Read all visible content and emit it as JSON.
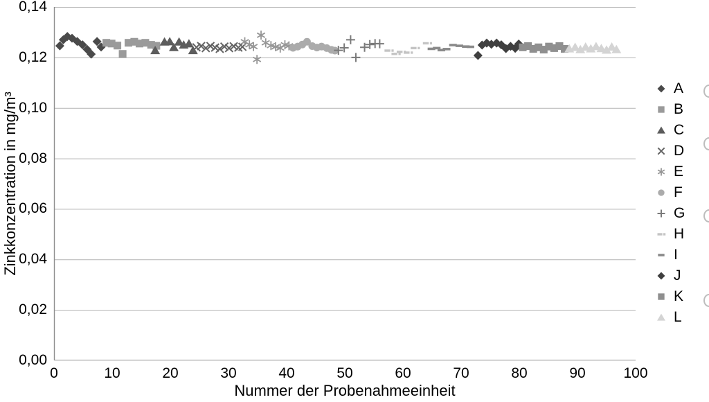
{
  "chart_data": {
    "type": "scatter",
    "title": "",
    "xlabel": "Nummer der Probenahmeeinheit",
    "ylabel": "Zinkkonzentration in mg/m³",
    "xlim": [
      0,
      100
    ],
    "ylim": [
      0,
      0.14
    ],
    "grid": "horizontal",
    "grid_color": "#b3b3b3",
    "axis_color": "#8c8c8c",
    "legend_position": "right",
    "x_ticks": [
      {
        "value": 0,
        "label": "0"
      },
      {
        "value": 10,
        "label": "10"
      },
      {
        "value": 20,
        "label": "20"
      },
      {
        "value": 30,
        "label": "30"
      },
      {
        "value": 40,
        "label": "40"
      },
      {
        "value": 50,
        "label": "50"
      },
      {
        "value": 60,
        "label": "60"
      },
      {
        "value": 70,
        "label": "70"
      },
      {
        "value": 80,
        "label": "80"
      },
      {
        "value": 90,
        "label": "90"
      },
      {
        "value": 100,
        "label": "100"
      }
    ],
    "y_ticks": [
      {
        "value": 0.0,
        "label": "0,00"
      },
      {
        "value": 0.02,
        "label": "0,02"
      },
      {
        "value": 0.04,
        "label": "0,04"
      },
      {
        "value": 0.06,
        "label": "0,06"
      },
      {
        "value": 0.08,
        "label": "0,08"
      },
      {
        "value": 0.1,
        "label": "0,10"
      },
      {
        "value": 0.12,
        "label": "0,12"
      },
      {
        "value": 0.14,
        "label": "0,14"
      }
    ],
    "series": [
      {
        "name": "A",
        "marker": "diamond",
        "color": "#4a4a4a",
        "points": [
          [
            1,
            0.1246
          ],
          [
            1.6,
            0.127
          ],
          [
            2.3,
            0.1283
          ],
          [
            3.1,
            0.1276
          ],
          [
            4.0,
            0.1263
          ],
          [
            4.9,
            0.125
          ],
          [
            5.7,
            0.1232
          ],
          [
            6.4,
            0.1213
          ],
          [
            7.4,
            0.1263
          ],
          [
            8.1,
            0.1241
          ]
        ]
      },
      {
        "name": "B",
        "marker": "square",
        "color": "#9a9a9a",
        "points": [
          [
            9,
            0.1258
          ],
          [
            9.9,
            0.1255
          ],
          [
            10.9,
            0.1247
          ],
          [
            11.8,
            0.1214
          ],
          [
            12.8,
            0.1258
          ],
          [
            13.8,
            0.1262
          ],
          [
            14.7,
            0.1255
          ],
          [
            15.7,
            0.1258
          ],
          [
            16.7,
            0.125
          ],
          [
            17.6,
            0.1246
          ]
        ]
      },
      {
        "name": "C",
        "marker": "triangle",
        "color": "#5c5c5c",
        "points": [
          [
            17.4,
            0.1228
          ],
          [
            19.0,
            0.1262
          ],
          [
            19.9,
            0.1263
          ],
          [
            20.6,
            0.124
          ],
          [
            21.5,
            0.1262
          ],
          [
            22.3,
            0.125
          ],
          [
            23.2,
            0.1255
          ],
          [
            23.9,
            0.1228
          ]
        ]
      },
      {
        "name": "D",
        "marker": "x",
        "color": "#636363",
        "points": [
          [
            24.5,
            0.124
          ],
          [
            25.3,
            0.1245
          ],
          [
            26.1,
            0.1237
          ],
          [
            26.9,
            0.1245
          ],
          [
            27.7,
            0.1239
          ],
          [
            28.5,
            0.1234
          ],
          [
            29.3,
            0.1243
          ],
          [
            30.1,
            0.1237
          ],
          [
            30.9,
            0.1244
          ],
          [
            31.7,
            0.1239
          ],
          [
            32.4,
            0.1242
          ]
        ]
      },
      {
        "name": "E",
        "marker": "asterisk",
        "color": "#969696",
        "points": [
          [
            32.8,
            0.1262
          ],
          [
            33.6,
            0.125
          ],
          [
            34.3,
            0.1243
          ],
          [
            34.9,
            0.1192
          ],
          [
            35.6,
            0.1288
          ],
          [
            36.4,
            0.1258
          ],
          [
            37.3,
            0.1247
          ],
          [
            38.1,
            0.1242
          ],
          [
            38.9,
            0.1237
          ],
          [
            39.7,
            0.125
          ],
          [
            40.4,
            0.1246
          ]
        ]
      },
      {
        "name": "F",
        "marker": "circle",
        "color": "#ababab",
        "points": [
          [
            41.1,
            0.1238
          ],
          [
            41.9,
            0.1243
          ],
          [
            42.7,
            0.1251
          ],
          [
            43.5,
            0.1262
          ],
          [
            44.4,
            0.1245
          ],
          [
            45.2,
            0.1239
          ],
          [
            46.0,
            0.1243
          ],
          [
            46.9,
            0.1237
          ],
          [
            47.7,
            0.123
          ],
          [
            48.3,
            0.1227
          ]
        ]
      },
      {
        "name": "G",
        "marker": "plus",
        "color": "#7a7a7a",
        "points": [
          [
            48.9,
            0.1228
          ],
          [
            49.9,
            0.1238
          ],
          [
            51.0,
            0.127
          ],
          [
            51.9,
            0.12
          ],
          [
            53.4,
            0.124
          ],
          [
            54.3,
            0.1251
          ],
          [
            55.2,
            0.1255
          ],
          [
            56.0,
            0.1254
          ]
        ]
      },
      {
        "name": "H",
        "marker": "dash-dot",
        "color": "#c4c4c4",
        "points": [
          [
            57.6,
            0.1227
          ],
          [
            58.8,
            0.1214
          ],
          [
            59.7,
            0.1222
          ],
          [
            60.9,
            0.1219
          ],
          [
            62.1,
            0.1237
          ],
          [
            64.2,
            0.1256
          ]
        ]
      },
      {
        "name": "I",
        "marker": "dash",
        "color": "#8a8a8a",
        "points": [
          [
            64.9,
            0.1234
          ],
          [
            65.8,
            0.1237
          ],
          [
            66.6,
            0.1229
          ],
          [
            67.5,
            0.1233
          ],
          [
            68.6,
            0.1249
          ],
          [
            69.7,
            0.1246
          ],
          [
            70.8,
            0.1243
          ],
          [
            71.6,
            0.1242
          ]
        ]
      },
      {
        "name": "J",
        "marker": "diamond",
        "color": "#3f3f3f",
        "points": [
          [
            72.9,
            0.1208
          ],
          [
            73.6,
            0.1249
          ],
          [
            74.4,
            0.1257
          ],
          [
            75.2,
            0.1252
          ],
          [
            76.1,
            0.1257
          ],
          [
            76.9,
            0.125
          ],
          [
            77.7,
            0.1235
          ],
          [
            78.5,
            0.1244
          ],
          [
            79.3,
            0.1236
          ],
          [
            79.9,
            0.1253
          ]
        ]
      },
      {
        "name": "K",
        "marker": "square",
        "color": "#8f8f8f",
        "points": [
          [
            80.6,
            0.124
          ],
          [
            81.5,
            0.1245
          ],
          [
            82.4,
            0.1234
          ],
          [
            83.3,
            0.124
          ],
          [
            84.2,
            0.1231
          ],
          [
            85.1,
            0.1243
          ],
          [
            86.0,
            0.1237
          ],
          [
            86.9,
            0.1245
          ],
          [
            87.8,
            0.1234
          ]
        ]
      },
      {
        "name": "L",
        "marker": "triangle",
        "color": "#d4d4d4",
        "points": [
          [
            88.6,
            0.1235
          ],
          [
            89.6,
            0.1241
          ],
          [
            90.5,
            0.1232
          ],
          [
            91.4,
            0.1242
          ],
          [
            92.3,
            0.1235
          ],
          [
            93.2,
            0.1244
          ],
          [
            94.1,
            0.1236
          ],
          [
            95.0,
            0.123
          ],
          [
            95.9,
            0.1242
          ],
          [
            96.7,
            0.1232
          ]
        ]
      }
    ]
  }
}
